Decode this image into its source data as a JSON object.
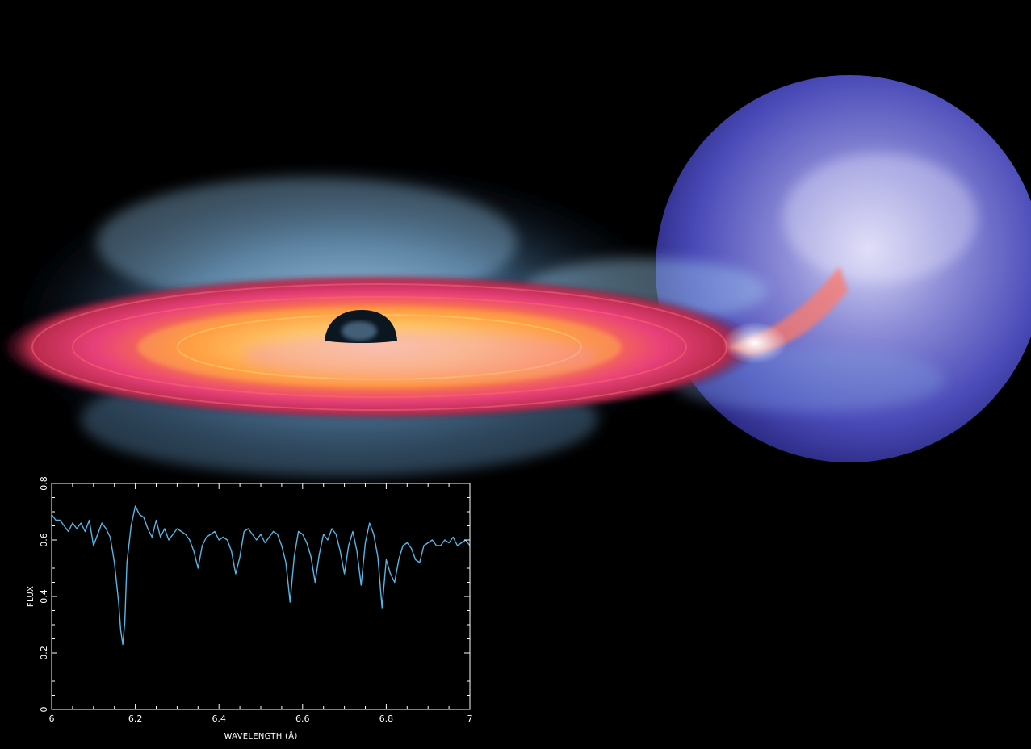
{
  "artwork": {
    "scene": "artist illustration of a black hole accretion disk with outflowing wind and a companion star",
    "colors": {
      "background": "#000000",
      "disk_hot": "#fff2b0",
      "disk_warm": "#ff8a3a",
      "disk_outer": "#e0305a",
      "disk_pink": "#f08ad8",
      "wind": "#8ec8f0",
      "star": "#4a4ab8",
      "star_glow": "#c8c8f0"
    }
  },
  "chart_data": {
    "type": "line",
    "title": "",
    "xlabel": "WAVELENGTH (Å)",
    "ylabel": "FLUX",
    "xlim": [
      6.0,
      7.0
    ],
    "ylim": [
      0.0,
      0.8
    ],
    "x_ticks": [
      "6",
      "6.2",
      "6.4",
      "6.6",
      "6.8",
      "7"
    ],
    "y_ticks": [
      "0",
      "0.2",
      "0.4",
      "0.6",
      "0.8"
    ],
    "x_tick_values": [
      6.0,
      6.2,
      6.4,
      6.6,
      6.8,
      7.0
    ],
    "y_tick_values": [
      0.0,
      0.2,
      0.4,
      0.6,
      0.8
    ],
    "grid": false,
    "line_color": "#5ab4e6",
    "frame_color": "#ffffff",
    "series": [
      {
        "x": [
          6.0,
          6.01,
          6.02,
          6.03,
          6.04,
          6.05,
          6.06,
          6.07,
          6.08,
          6.09,
          6.1,
          6.11,
          6.12,
          6.13,
          6.14,
          6.15,
          6.16,
          6.165,
          6.17,
          6.175,
          6.18,
          6.19,
          6.2,
          6.21,
          6.22,
          6.23,
          6.24,
          6.25,
          6.26,
          6.27,
          6.28,
          6.29,
          6.3,
          6.31,
          6.32,
          6.33,
          6.34,
          6.35,
          6.36,
          6.37,
          6.38,
          6.39,
          6.4,
          6.41,
          6.42,
          6.43,
          6.44,
          6.45,
          6.46,
          6.47,
          6.48,
          6.49,
          6.5,
          6.51,
          6.52,
          6.53,
          6.54,
          6.55,
          6.56,
          6.57,
          6.58,
          6.59,
          6.6,
          6.61,
          6.62,
          6.63,
          6.64,
          6.65,
          6.66,
          6.67,
          6.68,
          6.69,
          6.7,
          6.71,
          6.72,
          6.73,
          6.74,
          6.75,
          6.76,
          6.77,
          6.78,
          6.79,
          6.8,
          6.81,
          6.82,
          6.83,
          6.84,
          6.85,
          6.86,
          6.87,
          6.88,
          6.89,
          6.9,
          6.91,
          6.92,
          6.93,
          6.94,
          6.95,
          6.96,
          6.97,
          6.98,
          6.99,
          7.0
        ],
        "y": [
          0.69,
          0.67,
          0.67,
          0.65,
          0.63,
          0.66,
          0.64,
          0.66,
          0.63,
          0.67,
          0.58,
          0.62,
          0.66,
          0.64,
          0.61,
          0.52,
          0.38,
          0.28,
          0.23,
          0.31,
          0.52,
          0.65,
          0.72,
          0.69,
          0.68,
          0.64,
          0.61,
          0.67,
          0.61,
          0.64,
          0.6,
          0.62,
          0.64,
          0.63,
          0.62,
          0.6,
          0.56,
          0.5,
          0.58,
          0.61,
          0.62,
          0.63,
          0.6,
          0.61,
          0.6,
          0.56,
          0.48,
          0.54,
          0.63,
          0.64,
          0.62,
          0.6,
          0.62,
          0.59,
          0.61,
          0.63,
          0.62,
          0.58,
          0.52,
          0.38,
          0.54,
          0.63,
          0.62,
          0.59,
          0.54,
          0.45,
          0.55,
          0.62,
          0.6,
          0.64,
          0.62,
          0.56,
          0.48,
          0.58,
          0.63,
          0.56,
          0.44,
          0.59,
          0.66,
          0.62,
          0.54,
          0.36,
          0.53,
          0.48,
          0.45,
          0.53,
          0.58,
          0.59,
          0.57,
          0.53,
          0.52,
          0.58,
          0.59,
          0.6,
          0.58,
          0.58,
          0.6,
          0.59,
          0.61,
          0.58,
          0.59,
          0.6,
          0.58
        ]
      }
    ]
  }
}
